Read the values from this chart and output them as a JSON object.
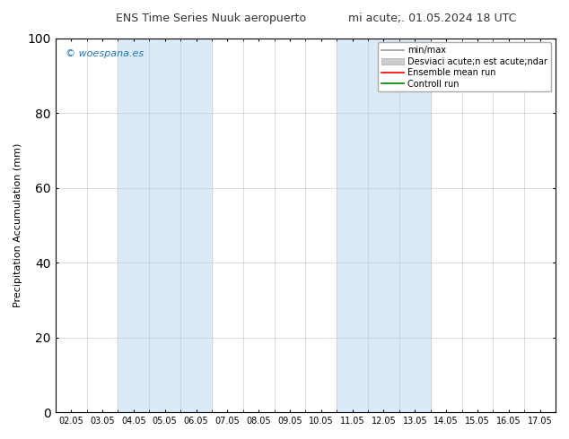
{
  "title_left": "ENS Time Series Nuuk aeropuerto",
  "title_right": "mi acute;. 01.05.2024 18 UTC",
  "ylabel": "Precipitation Accumulation (mm)",
  "ylim": [
    0,
    100
  ],
  "yticks": [
    0,
    20,
    40,
    60,
    80,
    100
  ],
  "x_labels": [
    "02.05",
    "03.05",
    "04.05",
    "05.05",
    "06.05",
    "07.05",
    "08.05",
    "09.05",
    "10.05",
    "11.05",
    "12.05",
    "13.05",
    "14.05",
    "15.05",
    "16.05",
    "17.05"
  ],
  "shaded_regions": [
    {
      "xstart": 2,
      "xend": 4,
      "color": "#daeaf7"
    },
    {
      "xstart": 9,
      "xend": 11,
      "color": "#daeaf7"
    }
  ],
  "watermark": "© woespana.es",
  "watermark_color": "#1a7abf",
  "legend_entries": [
    {
      "label": "min/max",
      "color": "#999999",
      "lw": 1.2,
      "ls": "-",
      "type": "line"
    },
    {
      "label": "Desviaci acute;n est acute;ndar",
      "color": "#cccccc",
      "type": "patch"
    },
    {
      "label": "Ensemble mean run",
      "color": "#ff0000",
      "lw": 1.2,
      "ls": "-",
      "type": "line"
    },
    {
      "label": "Controll run",
      "color": "#008000",
      "lw": 1.2,
      "ls": "-",
      "type": "line"
    }
  ],
  "background_color": "#ffffff",
  "plot_bg_color": "#ffffff",
  "grid_color": "#cccccc",
  "tick_label_fontsize": 7,
  "axis_label_fontsize": 8,
  "title_fontsize": 9,
  "legend_fontsize": 7
}
